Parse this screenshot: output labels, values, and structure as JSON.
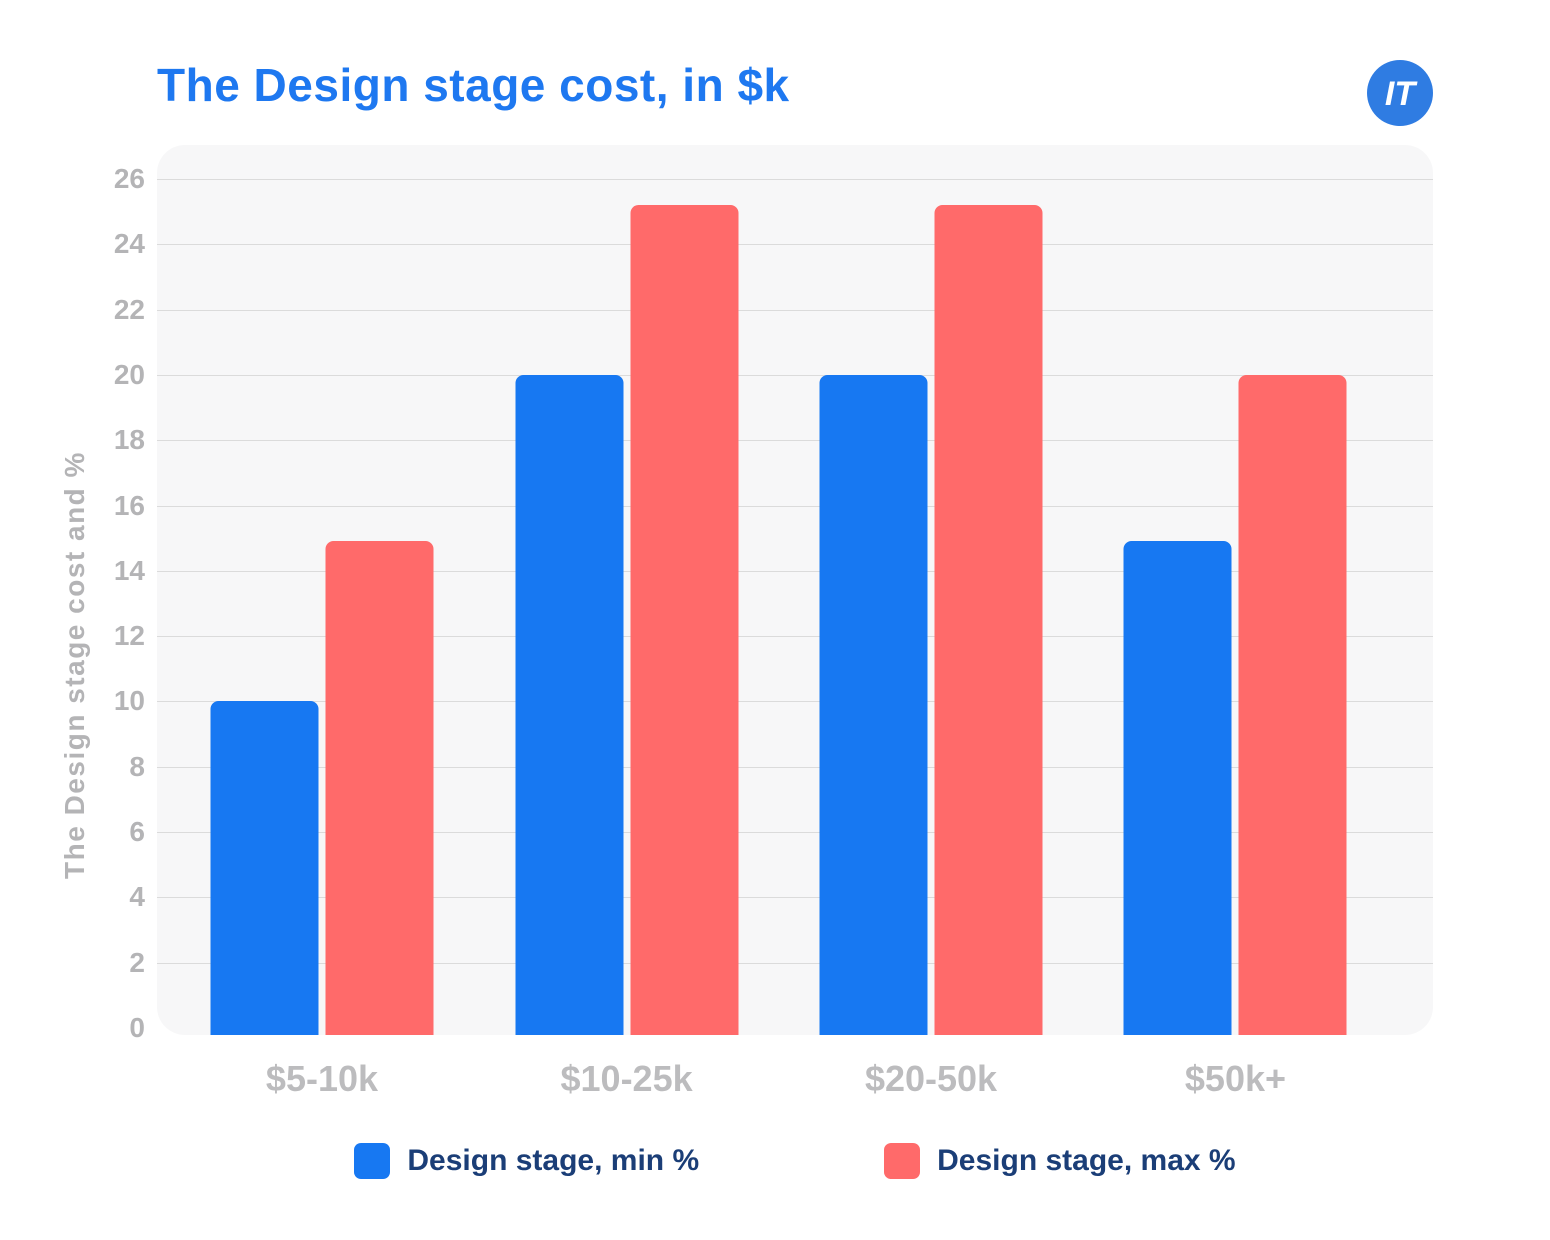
{
  "header": {
    "title": "The Design stage cost, in $k",
    "logo_glyph": "IT"
  },
  "colors": {
    "title_text": "#1e78f0",
    "min_bar": "#1778f2",
    "max_bar": "#ff6a6a",
    "legend_text": "#1b3e77",
    "axis_text": "#b4b4b6",
    "plot_background": "#f7f7f8",
    "gridline": "#dbdbdb",
    "logo_background": "#2f7ce2"
  },
  "chart_data": {
    "type": "bar",
    "title": "The Design stage cost, in $k",
    "categories": [
      "$5-10k",
      "$10-25k",
      "$20-50k",
      "$50k+"
    ],
    "series": [
      {
        "name": "Design stage, min %",
        "color": "#1778f2",
        "values": [
          10,
          20,
          20,
          14.9
        ]
      },
      {
        "name": "Design stage, max %",
        "color": "#ff6a6a",
        "values": [
          14.9,
          25.2,
          25.2,
          20
        ]
      }
    ],
    "xlabel": "",
    "ylabel": "The Design stage cost and %",
    "ylim": [
      0,
      26
    ],
    "yticks": [
      0,
      2,
      4,
      6,
      8,
      10,
      12,
      14,
      16,
      18,
      20,
      22,
      24,
      26
    ],
    "grid": "horizontal",
    "legend_position": "bottom"
  }
}
